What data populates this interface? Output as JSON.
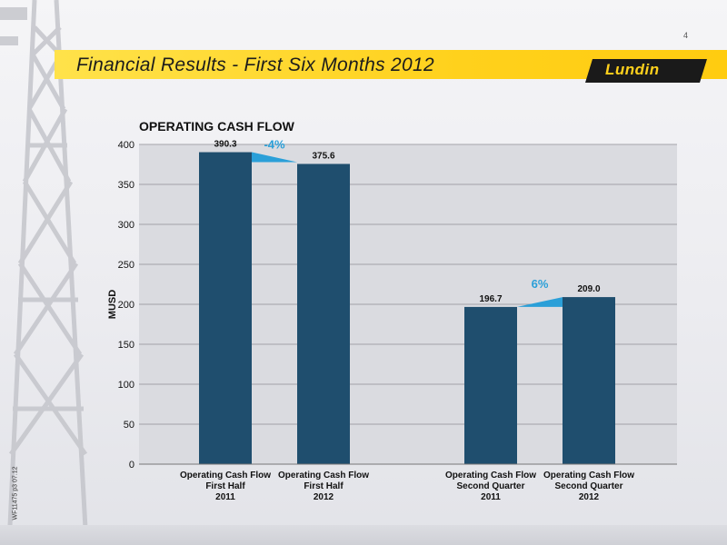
{
  "page_number": "4",
  "header": {
    "title": "Financial Results - First Six Months 2012",
    "logo_text": "Lundin"
  },
  "side_code": "WF11475 p3 07.12",
  "colors": {
    "bar": "#1f4e6e",
    "banner": "#ffd11c",
    "change_arrow": "#2a9fd8",
    "plot_bg": "#dadbe0"
  },
  "chart_data": {
    "type": "bar",
    "title": "OPERATING CASH FLOW",
    "ylabel": "MUSD",
    "xlabel": "",
    "ylim": [
      0,
      400
    ],
    "yticks": [
      0,
      50,
      100,
      150,
      200,
      250,
      300,
      350,
      400
    ],
    "grid": true,
    "categories": [
      [
        "Operating Cash Flow",
        "First Half",
        "2011"
      ],
      [
        "Operating Cash Flow",
        "First Half",
        "2012"
      ],
      [
        "Operating Cash Flow",
        "Second Quarter",
        "2011"
      ],
      [
        "Operating Cash Flow",
        "Second Quarter",
        "2012"
      ]
    ],
    "values": [
      390.3,
      375.6,
      196.7,
      209.0
    ],
    "value_labels": [
      "390.3",
      "375.6",
      "196.7",
      "209.0"
    ],
    "changes": [
      {
        "from": 0,
        "to": 1,
        "label": "-4%"
      },
      {
        "from": 2,
        "to": 3,
        "label": "6%"
      }
    ]
  }
}
